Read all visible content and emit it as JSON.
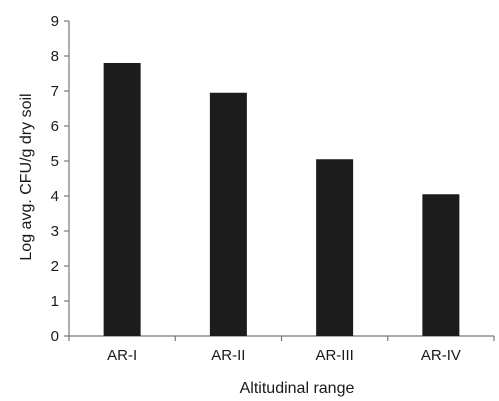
{
  "chart_data": {
    "type": "bar",
    "categories": [
      "AR-I",
      "AR-II",
      "AR-III",
      "AR-IV"
    ],
    "values": [
      7.8,
      6.95,
      5.05,
      4.05
    ],
    "xlabel": "Altitudinal range",
    "ylabel": "Log avg. CFU/g dry soil",
    "ylim": [
      0,
      9
    ],
    "yticks": [
      "0",
      "1",
      "2",
      "3",
      "4",
      "5",
      "6",
      "7",
      "8",
      "9"
    ],
    "grid": false,
    "legend": "none",
    "bar_color": "#1c1c1c",
    "axis_color": "#777777"
  }
}
